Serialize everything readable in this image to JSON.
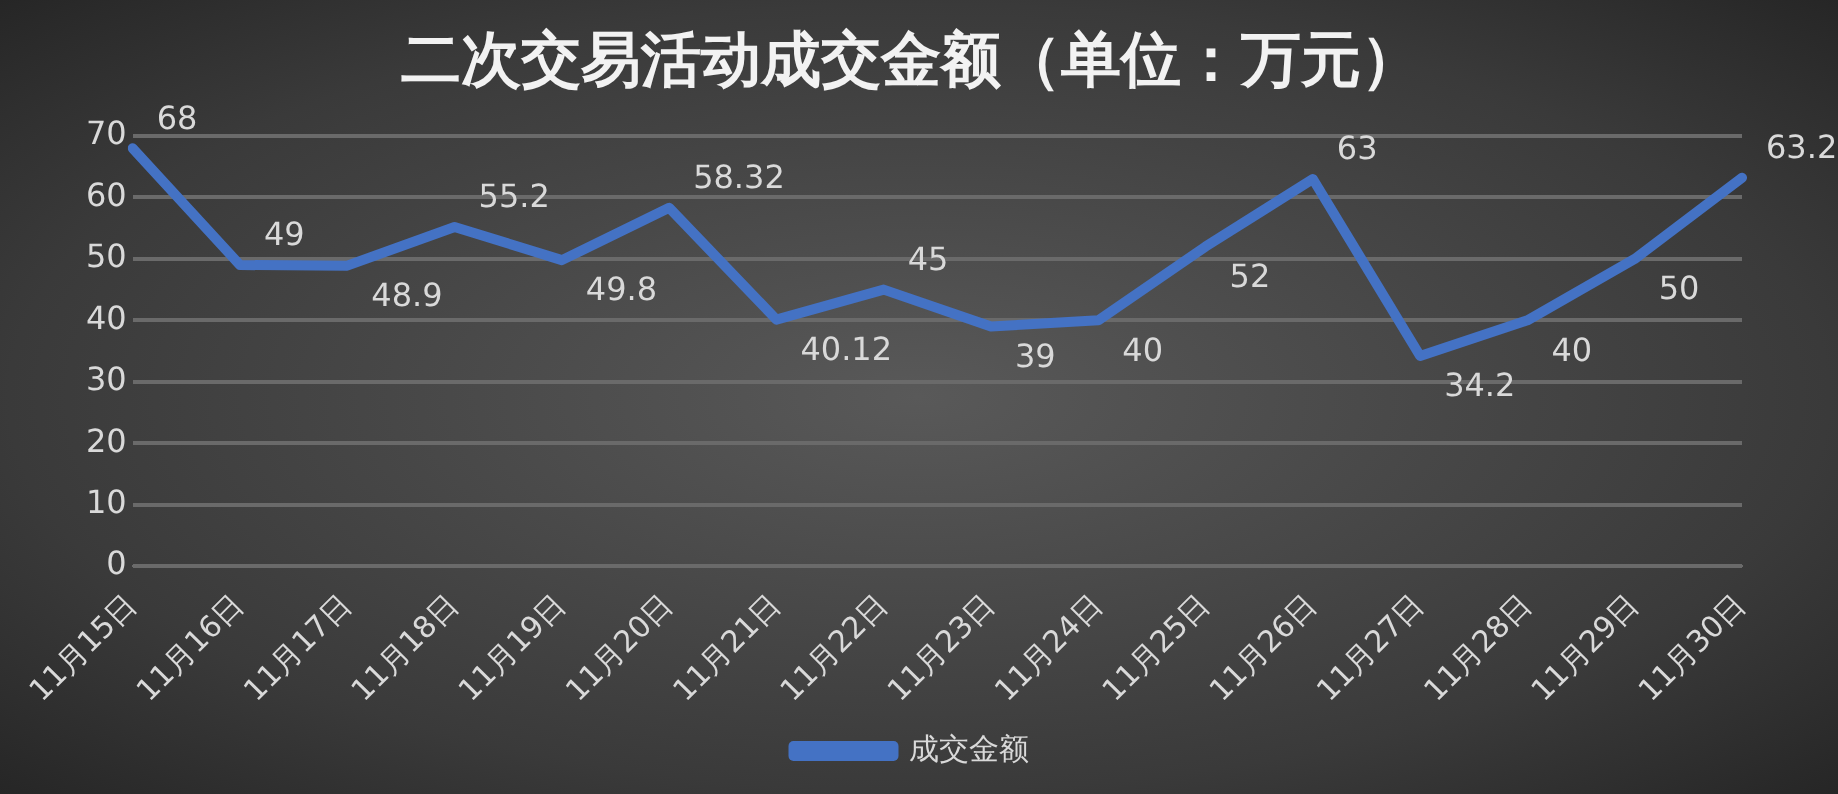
{
  "chart_data": {
    "type": "line",
    "title": "二次交易活动成交金额（单位：万元）",
    "categories": [
      "11月15日",
      "11月16日",
      "11月17日",
      "11月18日",
      "11月19日",
      "11月20日",
      "11月21日",
      "11月22日",
      "11月23日",
      "11月24日",
      "11月25日",
      "11月26日",
      "11月27日",
      "11月28日",
      "11月29日",
      "11月30日"
    ],
    "series": [
      {
        "name": "成交金额",
        "color": "#4472c4",
        "values": [
          68,
          49,
          48.9,
          55.2,
          49.8,
          58.32,
          40.12,
          45,
          39,
          40,
          52,
          63,
          34.2,
          40,
          50,
          63.2
        ]
      }
    ],
    "ylim": [
      0,
      70
    ],
    "yticks": [
      0,
      10,
      20,
      30,
      40,
      50,
      60,
      70
    ],
    "grid": "y",
    "legend": "bottom",
    "marker": "none",
    "line_style": "solid",
    "data_labels": true
  }
}
